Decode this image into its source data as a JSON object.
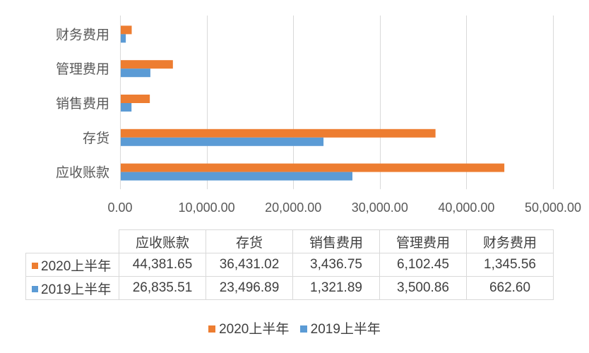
{
  "chart_data": {
    "type": "bar",
    "orientation": "horizontal",
    "categories": [
      "应收账款",
      "存货",
      "销售费用",
      "管理费用",
      "财务费用"
    ],
    "series": [
      {
        "name": "2020上半年",
        "color": "#ED7D31",
        "values": [
          44381.65,
          36431.02,
          3436.75,
          6102.45,
          1345.56
        ]
      },
      {
        "name": "2019上半年",
        "color": "#5B9BD5",
        "values": [
          26835.51,
          23496.89,
          1321.89,
          3500.86,
          662.6
        ]
      }
    ],
    "xlim": [
      0,
      50000
    ],
    "x_ticks": [
      0,
      10000,
      20000,
      30000,
      40000,
      50000
    ],
    "x_tick_labels": [
      "0.00",
      "10,000.00",
      "20,000.00",
      "30,000.00",
      "40,000.00",
      "50,000.00"
    ],
    "grid": "vertical",
    "legend": "bottom",
    "data_table": true
  },
  "table": {
    "header": [
      "应收账款",
      "存货",
      "销售费用",
      "管理费用",
      "财务费用"
    ],
    "rows": [
      {
        "label": "2020上半年",
        "color": "#ED7D31",
        "values": [
          "44,381.65",
          "36,431.02",
          "3,436.75",
          "6,102.45",
          "1,345.56"
        ]
      },
      {
        "label": "2019上半年",
        "color": "#5B9BD5",
        "values": [
          "26,835.51",
          "23,496.89",
          "1,321.89",
          "3,500.86",
          "662.60"
        ]
      }
    ]
  },
  "colors": {
    "grid": "#D9D9D9",
    "axis_text": "#595959"
  }
}
